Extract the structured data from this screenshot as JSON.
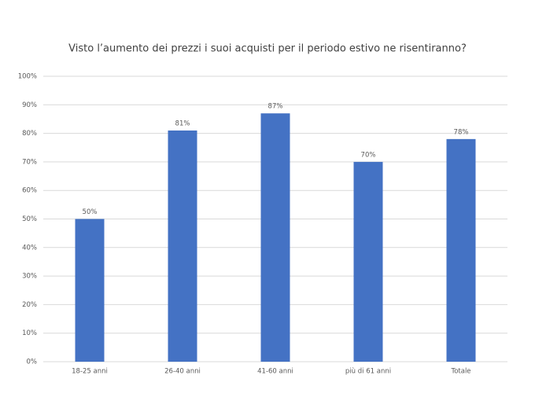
{
  "chart_data": {
    "type": "bar",
    "title": "Visto l’aumento dei prezzi i suoi acquisti per il periodo estivo ne risentiranno?",
    "categories": [
      "18-25 anni",
      "26-40 anni",
      "41-60 anni",
      "più di 61 anni",
      "Totale"
    ],
    "values": [
      50,
      81,
      87,
      70,
      78
    ],
    "value_labels": [
      "50%",
      "81%",
      "87%",
      "70%",
      "78%"
    ],
    "color": "#4472c4",
    "ylim": [
      0,
      100
    ],
    "yticks": [
      {
        "value": 0,
        "label": "0%"
      },
      {
        "value": 10,
        "label": "10%"
      },
      {
        "value": 20,
        "label": "20%"
      },
      {
        "value": 30,
        "label": "30%"
      },
      {
        "value": 40,
        "label": "40%"
      },
      {
        "value": 50,
        "label": "50%"
      },
      {
        "value": 60,
        "label": "60%"
      },
      {
        "value": 70,
        "label": "70%"
      },
      {
        "value": 80,
        "label": "80%"
      },
      {
        "value": 90,
        "label": "90%"
      },
      {
        "value": 100,
        "label": "100%"
      }
    ],
    "grid": true
  }
}
